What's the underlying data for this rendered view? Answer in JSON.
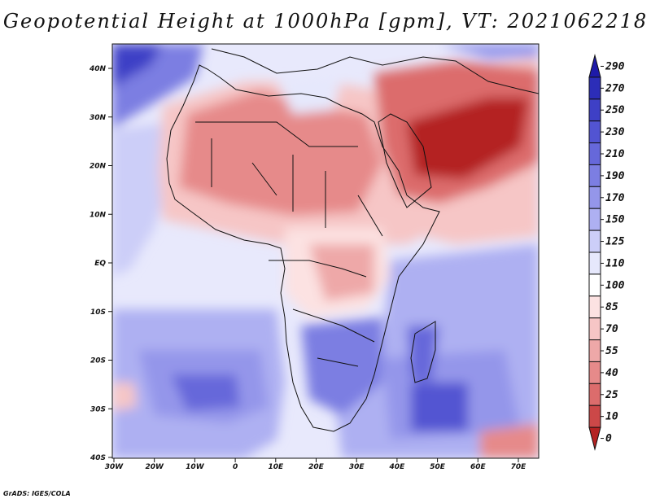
{
  "title": "Geopotential Height at 1000hPa [gpm], VT: 2021062218",
  "credit": "GrADS: IGES/COLA",
  "lat_labels": [
    "40N",
    "30N",
    "20N",
    "10N",
    "EQ",
    "10S",
    "20S",
    "30S",
    "40S"
  ],
  "lon_labels": [
    "30W",
    "20W",
    "10W",
    "0",
    "10E",
    "20E",
    "30E",
    "40E",
    "50E",
    "60E",
    "70E"
  ],
  "colorbar": {
    "levels": [
      "290",
      "270",
      "250",
      "230",
      "210",
      "190",
      "170",
      "150",
      "125",
      "110",
      "100",
      "85",
      "70",
      "55",
      "40",
      "25",
      "10",
      "0"
    ],
    "colors": [
      "#1e1aa8",
      "#2c2db8",
      "#3e40c6",
      "#5254d2",
      "#6668da",
      "#7c7ee2",
      "#9496ea",
      "#aeb0f2",
      "#cccef8",
      "#e6e8fc",
      "#ffffff",
      "#fce2e2",
      "#f6c6c6",
      "#eea8a8",
      "#e68a8a",
      "#dc6c6c",
      "#cc4848",
      "#b42222"
    ]
  }
}
